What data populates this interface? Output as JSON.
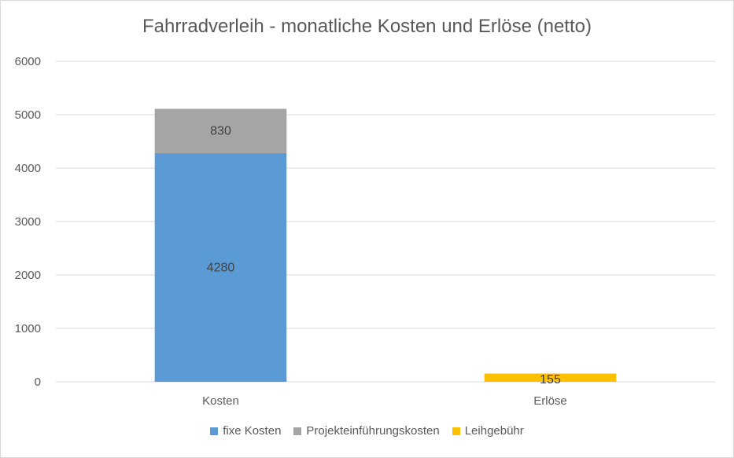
{
  "chart_data": {
    "type": "bar",
    "stacked": true,
    "title": "Fahrradverleih - monatliche Kosten und Erlöse (netto)",
    "categories": [
      "Kosten",
      "Erlöse"
    ],
    "series": [
      {
        "name": "fixe Kosten",
        "values": [
          4280,
          0
        ],
        "color": "#5b9bd5",
        "labels": [
          "4280",
          ""
        ]
      },
      {
        "name": "Projekteinführungskosten",
        "values": [
          830,
          0
        ],
        "color": "#a5a5a5",
        "labels": [
          "830",
          ""
        ]
      },
      {
        "name": "Leihgebühr",
        "values": [
          0,
          155
        ],
        "color": "#ffc000",
        "labels": [
          "",
          "155"
        ]
      }
    ],
    "ylim": [
      0,
      6000
    ],
    "yticks": [
      "0",
      "1000",
      "2000",
      "3000",
      "4000",
      "5000",
      "6000"
    ],
    "grid": true,
    "legend_position": "bottom"
  }
}
